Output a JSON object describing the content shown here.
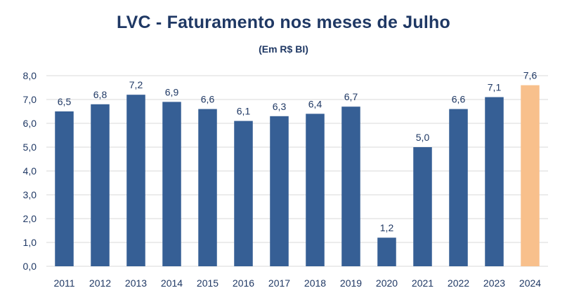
{
  "colors": {
    "bar": "#365f95",
    "highlight_bar": "#f8c08c",
    "grid": "#d9d9d9",
    "text": "#1f3864"
  },
  "chart_data": {
    "type": "bar",
    "title": "LVC - Faturamento nos meses de Julho",
    "subtitle": "(Em R$ BI)",
    "xlabel": "",
    "ylabel": "",
    "categories": [
      "2011",
      "2012",
      "2013",
      "2014",
      "2015",
      "2016",
      "2017",
      "2018",
      "2019",
      "2020",
      "2021",
      "2022",
      "2023",
      "2024"
    ],
    "values": [
      6.5,
      6.8,
      7.2,
      6.9,
      6.6,
      6.1,
      6.3,
      6.4,
      6.7,
      1.2,
      5.0,
      6.6,
      7.1,
      7.6
    ],
    "value_labels": [
      "6,5",
      "6,8",
      "7,2",
      "6,9",
      "6,6",
      "6,1",
      "6,3",
      "6,4",
      "6,7",
      "1,2",
      "5,0",
      "6,6",
      "7,1",
      "7,6"
    ],
    "highlight_category": "2024",
    "ylim": [
      0,
      8
    ],
    "yticks": [
      0,
      1,
      2,
      3,
      4,
      5,
      6,
      7,
      8
    ],
    "ytick_labels": [
      "0,0",
      "1,0",
      "2,0",
      "3,0",
      "4,0",
      "5,0",
      "6,0",
      "7,0",
      "8,0"
    ],
    "grid": true,
    "legend": false
  }
}
